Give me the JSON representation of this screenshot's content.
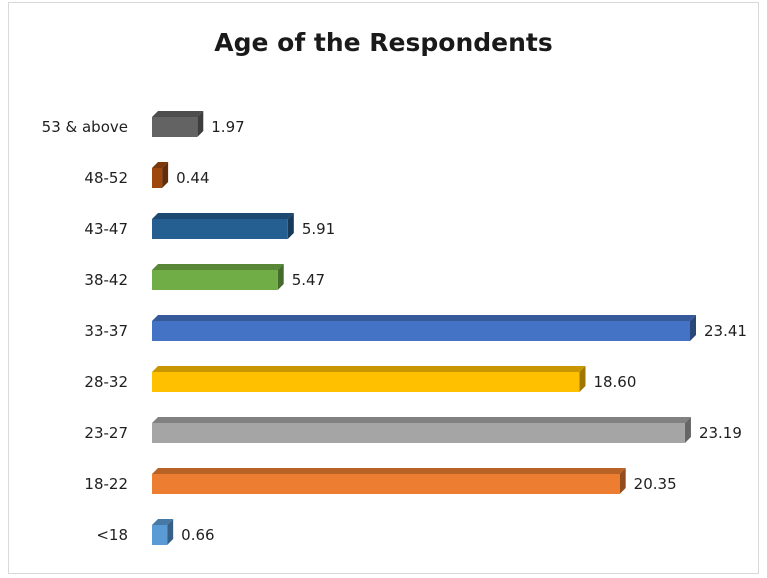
{
  "chart_data": {
    "type": "bar",
    "orientation": "horizontal",
    "title": "Age of the Respondents",
    "xlabel": "",
    "ylabel": "",
    "grid": false,
    "legend": "none",
    "categories": [
      "<18",
      "18-22",
      "23-27",
      "28-32",
      "33-37",
      "38-42",
      "43-47",
      "48-52",
      "53 & above"
    ],
    "values": [
      0.66,
      20.35,
      23.19,
      18.6,
      23.41,
      5.47,
      5.91,
      0.44,
      1.97
    ],
    "value_labels": [
      "0.66",
      "20.35",
      "23.19",
      "18.60",
      "23.41",
      "5.47",
      "5.91",
      "0.44",
      "1.97"
    ],
    "colors": [
      "#5b9bd5",
      "#ed7d31",
      "#a5a5a5",
      "#ffc000",
      "#4472c4",
      "#70ad47",
      "#255e91",
      "#9e480e",
      "#636363"
    ],
    "xlim": [
      0,
      23.41
    ]
  }
}
